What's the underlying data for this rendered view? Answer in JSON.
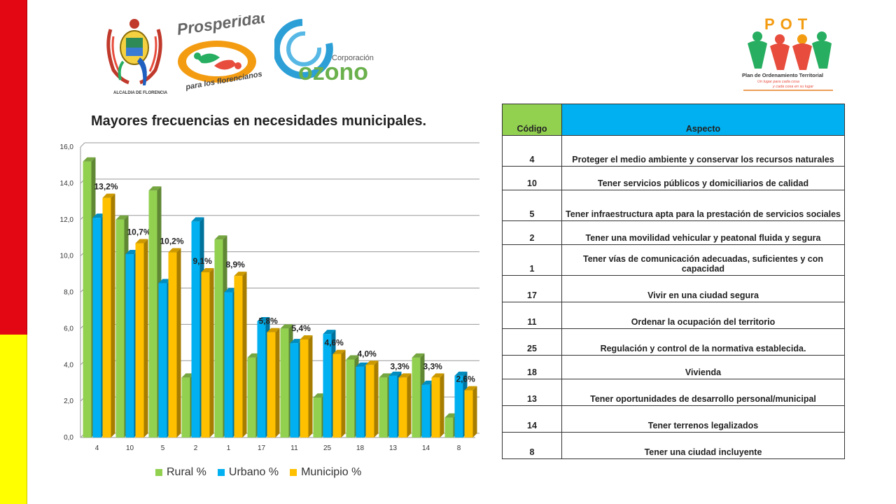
{
  "logos": {
    "alcaldia": {
      "icon": "coat-of-arms-icon",
      "caption": "ALCALDIA DE FLORENCIA"
    },
    "prosperidad": {
      "icon": "prosperidad-logo-icon",
      "title": "Prosperidad",
      "subtitle": "para los florencianos"
    },
    "ozono": {
      "icon": "ozono-logo-icon",
      "prefix": "Corporación",
      "name": "ozono"
    },
    "pot": {
      "icon": "pot-logo-icon",
      "acronym": "POT",
      "name": "Plan de Ordenamiento Territorial",
      "slogan1": "Un lugar para cada cosa",
      "slogan2": "y cada cosa en su lugar"
    }
  },
  "chart_data": {
    "type": "bar",
    "title": "Mayores frecuencias en necesidades municipales.",
    "categories": [
      "4",
      "10",
      "5",
      "2",
      "1",
      "17",
      "11",
      "25",
      "18",
      "13",
      "14",
      "8"
    ],
    "series": [
      {
        "name": "Rural %",
        "color": "#92d050",
        "values": [
          15.2,
          12.0,
          13.6,
          3.3,
          10.9,
          4.4,
          6.0,
          2.2,
          4.3,
          3.3,
          4.4,
          1.1
        ]
      },
      {
        "name": "Urbano %",
        "color": "#00b0f0",
        "values": [
          12.1,
          10.1,
          8.5,
          11.9,
          8.0,
          6.4,
          5.2,
          5.7,
          3.9,
          3.4,
          2.9,
          3.4
        ]
      },
      {
        "name": "Municipio %",
        "color": "#ffc000",
        "values": [
          13.2,
          10.7,
          10.2,
          9.1,
          8.9,
          5.8,
          5.4,
          4.6,
          4.0,
          3.3,
          3.3,
          2.6
        ]
      }
    ],
    "data_labels": [
      "13,2%",
      "10,7%",
      "10,2%",
      "9,1%",
      "8,9%",
      "5,8%",
      "5,4%",
      "4,6%",
      "4,0%",
      "3,3%",
      "3,3%",
      "2,6%"
    ],
    "ylim": [
      0,
      16
    ],
    "yticks": [
      "0,0",
      "2,0",
      "4,0",
      "6,0",
      "8,0",
      "10,0",
      "12,0",
      "14,0",
      "16,0"
    ],
    "grid": true,
    "legend": "bottom"
  },
  "table": {
    "headers": [
      "Código",
      "Aspecto"
    ],
    "rows": [
      [
        "4",
        "Proteger el medio ambiente y conservar los recursos naturales"
      ],
      [
        "10",
        "Tener servicios públicos y domiciliarios de calidad"
      ],
      [
        "5",
        "Tener infraestructura apta para la prestación de servicios sociales"
      ],
      [
        "2",
        "Tener una movilidad vehicular y peatonal fluida y segura"
      ],
      [
        "1",
        "Tener vías de comunicación adecuadas, suficientes y con capacidad"
      ],
      [
        "17",
        "Vivir en una ciudad segura"
      ],
      [
        "11",
        "Ordenar la ocupación del territorio"
      ],
      [
        "25",
        "Regulación y control de la normativa establecida."
      ],
      [
        "18",
        "Vivienda"
      ],
      [
        "13",
        "Tener oportunidades de desarrollo personal/municipal"
      ],
      [
        "14",
        "Tener terrenos legalizados"
      ],
      [
        "8",
        "Tener una ciudad incluyente"
      ]
    ]
  }
}
